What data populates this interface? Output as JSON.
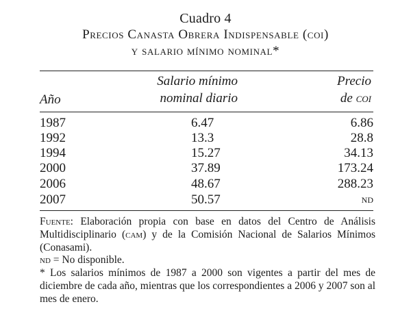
{
  "title": {
    "line1": "Cuadro 4",
    "line2": "Precios Canasta Obrera Indispensable (coi)",
    "line3": "y salario mínimo nominal*"
  },
  "table": {
    "headers": {
      "year": "Año",
      "salary_line1": "Salario mínimo",
      "salary_line2": "nominal diario",
      "price_line1": "Precio",
      "price_line2_prefix": "de ",
      "price_line2_abbr": "coi"
    },
    "rows": [
      {
        "year": "1987",
        "salary": "6.47",
        "price": "6.86"
      },
      {
        "year": "1992",
        "salary": "13.3",
        "price": "28.8"
      },
      {
        "year": "1994",
        "salary": "15.27",
        "price": "34.13"
      },
      {
        "year": "2000",
        "salary": "37.89",
        "price": "173.24"
      },
      {
        "year": "2006",
        "salary": "48.67",
        "price": "288.23"
      },
      {
        "year": "2007",
        "salary": "50.57",
        "price": "nd"
      }
    ]
  },
  "notes": {
    "fuente_label": "Fuente:",
    "fuente_text_a": " Elaboración propia con base en datos del Centro de Análisis Multidisciplinario (",
    "fuente_abbr": "cam",
    "fuente_text_b": ") y de la Comisión Nacional de Salarios Mínimos (Conasami).",
    "nd_abbr": "nd",
    "nd_text": " = No disponible.",
    "star_text": "* Los salarios mínimos de 1987 a 2000 son vigentes a partir del mes de diciembre de cada año, mientras que los correspondientes a 2006 y 2007 son al mes de enero."
  }
}
